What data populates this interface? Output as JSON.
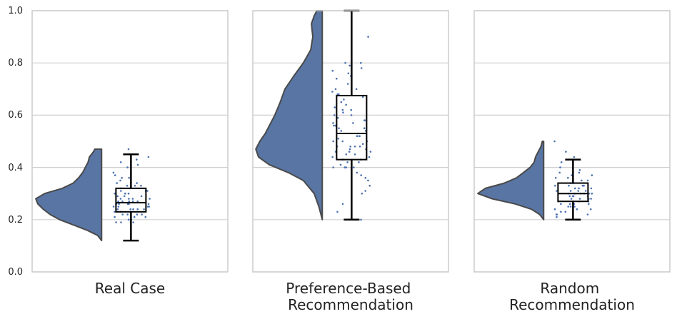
{
  "chart_data": {
    "type": "raincloud",
    "ylim": [
      0,
      1
    ],
    "yticks": [
      "0.0",
      "0.2",
      "0.4",
      "0.6",
      "0.8",
      "1.0"
    ],
    "grid": true,
    "colors": {
      "violin": "#5875a4",
      "violin_edge": "#4a4a4a",
      "points": "#4c72b0",
      "box": "#000000",
      "grid": "#d0d0d0",
      "frame": "#cccccc"
    },
    "panels": [
      {
        "label_lines": [
          "Real Case"
        ],
        "range": [
          0.12,
          0.47
        ],
        "box": {
          "q1": 0.23,
          "median": 0.265,
          "q3": 0.32,
          "whisker_low": 0.12,
          "whisker_high": 0.45
        },
        "density": [
          [
            0.12,
            0.0
          ],
          [
            0.14,
            0.06
          ],
          [
            0.16,
            0.22
          ],
          [
            0.18,
            0.42
          ],
          [
            0.2,
            0.62
          ],
          [
            0.22,
            0.76
          ],
          [
            0.24,
            0.86
          ],
          [
            0.26,
            0.94
          ],
          [
            0.28,
            0.97
          ],
          [
            0.3,
            0.84
          ],
          [
            0.32,
            0.58
          ],
          [
            0.34,
            0.42
          ],
          [
            0.36,
            0.34
          ],
          [
            0.38,
            0.28
          ],
          [
            0.4,
            0.24
          ],
          [
            0.42,
            0.2
          ],
          [
            0.44,
            0.18
          ],
          [
            0.46,
            0.12
          ],
          [
            0.47,
            0.1
          ]
        ],
        "points": [
          0.19,
          0.19,
          0.19,
          0.19,
          0.2,
          0.2,
          0.21,
          0.21,
          0.21,
          0.22,
          0.22,
          0.22,
          0.22,
          0.23,
          0.23,
          0.23,
          0.24,
          0.24,
          0.24,
          0.24,
          0.25,
          0.25,
          0.25,
          0.25,
          0.26,
          0.26,
          0.26,
          0.26,
          0.26,
          0.27,
          0.27,
          0.27,
          0.27,
          0.28,
          0.28,
          0.28,
          0.28,
          0.29,
          0.29,
          0.29,
          0.3,
          0.3,
          0.3,
          0.31,
          0.31,
          0.31,
          0.32,
          0.32,
          0.33,
          0.33,
          0.33,
          0.34,
          0.34,
          0.35,
          0.36,
          0.37,
          0.38,
          0.4,
          0.41,
          0.43,
          0.44,
          0.45,
          0.47,
          0.18,
          0.2,
          0.24,
          0.27,
          0.3,
          0.36,
          0.42
        ]
      },
      {
        "label_lines": [
          "Preference-Based",
          "Recommendation"
        ],
        "range": [
          0.2,
          1.0
        ],
        "box": {
          "q1": 0.43,
          "median": 0.53,
          "q3": 0.675,
          "whisker_low": 0.2,
          "whisker_high": 1.0
        },
        "density": [
          [
            0.2,
            0.0
          ],
          [
            0.25,
            0.05
          ],
          [
            0.3,
            0.12
          ],
          [
            0.35,
            0.28
          ],
          [
            0.38,
            0.5
          ],
          [
            0.41,
            0.78
          ],
          [
            0.44,
            0.94
          ],
          [
            0.47,
            0.98
          ],
          [
            0.5,
            0.92
          ],
          [
            0.53,
            0.84
          ],
          [
            0.56,
            0.78
          ],
          [
            0.6,
            0.7
          ],
          [
            0.65,
            0.62
          ],
          [
            0.7,
            0.55
          ],
          [
            0.75,
            0.42
          ],
          [
            0.8,
            0.28
          ],
          [
            0.85,
            0.17
          ],
          [
            0.9,
            0.14
          ],
          [
            0.95,
            0.16
          ],
          [
            0.98,
            0.12
          ],
          [
            1.0,
            0.08
          ]
        ],
        "points": [
          0.2,
          0.23,
          0.26,
          0.3,
          0.31,
          0.33,
          0.35,
          0.36,
          0.37,
          0.38,
          0.4,
          0.4,
          0.4,
          0.4,
          0.41,
          0.42,
          0.42,
          0.43,
          0.43,
          0.44,
          0.44,
          0.45,
          0.45,
          0.46,
          0.46,
          0.46,
          0.47,
          0.47,
          0.48,
          0.48,
          0.48,
          0.49,
          0.5,
          0.5,
          0.5,
          0.51,
          0.52,
          0.52,
          0.53,
          0.54,
          0.54,
          0.55,
          0.55,
          0.56,
          0.56,
          0.57,
          0.57,
          0.58,
          0.58,
          0.59,
          0.6,
          0.6,
          0.61,
          0.62,
          0.63,
          0.64,
          0.65,
          0.66,
          0.67,
          0.68,
          0.68,
          0.69,
          0.7,
          0.7,
          0.72,
          0.74,
          0.75,
          0.76,
          0.77,
          0.78,
          0.79,
          0.8,
          0.8,
          0.9,
          0.48,
          0.52,
          0.62
        ]
      },
      {
        "label_lines": [
          "Random",
          "Recommendation"
        ],
        "range": [
          0.2,
          0.5
        ],
        "box": {
          "q1": 0.27,
          "median": 0.3,
          "q3": 0.34,
          "whisker_low": 0.2,
          "whisker_high": 0.43
        },
        "density": [
          [
            0.2,
            0.0
          ],
          [
            0.22,
            0.06
          ],
          [
            0.24,
            0.18
          ],
          [
            0.26,
            0.42
          ],
          [
            0.28,
            0.76
          ],
          [
            0.3,
            0.97
          ],
          [
            0.32,
            0.86
          ],
          [
            0.34,
            0.58
          ],
          [
            0.36,
            0.4
          ],
          [
            0.38,
            0.3
          ],
          [
            0.4,
            0.2
          ],
          [
            0.42,
            0.14
          ],
          [
            0.44,
            0.12
          ],
          [
            0.46,
            0.08
          ],
          [
            0.48,
            0.04
          ],
          [
            0.5,
            0.02
          ]
        ],
        "points": [
          0.2,
          0.21,
          0.22,
          0.22,
          0.22,
          0.23,
          0.23,
          0.24,
          0.24,
          0.25,
          0.25,
          0.25,
          0.26,
          0.26,
          0.26,
          0.27,
          0.27,
          0.27,
          0.27,
          0.28,
          0.28,
          0.28,
          0.28,
          0.29,
          0.29,
          0.29,
          0.3,
          0.3,
          0.3,
          0.3,
          0.3,
          0.31,
          0.31,
          0.31,
          0.31,
          0.32,
          0.32,
          0.32,
          0.33,
          0.33,
          0.33,
          0.34,
          0.34,
          0.35,
          0.35,
          0.36,
          0.36,
          0.37,
          0.37,
          0.38,
          0.38,
          0.39,
          0.4,
          0.42,
          0.44,
          0.46,
          0.5,
          0.24,
          0.29,
          0.33,
          0.3,
          0.26
        ]
      }
    ]
  }
}
